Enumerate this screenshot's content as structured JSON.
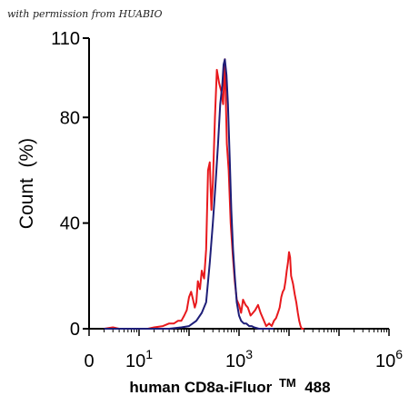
{
  "watermark": "with permission from HUABIO",
  "chart_data": {
    "type": "line",
    "xlabel": "human CD8a-iFluor™ 488",
    "xlabel_main": "human CD8a-iFluor",
    "xlabel_tm": "TM",
    "xlabel_tail": " 488",
    "ylabel": "Count  (%)",
    "x_scale": "log",
    "xlim": [
      1,
      1000000
    ],
    "ylim": [
      0,
      110
    ],
    "y_ticks": [
      0,
      40,
      80,
      110
    ],
    "x_ticks": [
      {
        "value": 1,
        "base": "0",
        "exp": ""
      },
      {
        "value": 10,
        "base": "10",
        "exp": "1"
      },
      {
        "value": 1000,
        "base": "10",
        "exp": "3"
      },
      {
        "value": 1000000,
        "base": "10",
        "exp": "6"
      }
    ],
    "grid": false,
    "series": [
      {
        "color": "#e8191d",
        "x": [
          2,
          3,
          4,
          6,
          10,
          15,
          20,
          30,
          40,
          50,
          60,
          70,
          80,
          90,
          100,
          110,
          120,
          130,
          140,
          150,
          165,
          180,
          200,
          220,
          240,
          260,
          280,
          300,
          330,
          360,
          400,
          440,
          480,
          520,
          570,
          620,
          680,
          750,
          820,
          900,
          1000,
          1100,
          1200,
          1350,
          1500,
          1700,
          1900,
          2100,
          2400,
          2700,
          3000,
          3500,
          4000,
          4500,
          5000,
          5500,
          6000,
          6500,
          7000,
          7500,
          8000,
          8500,
          9000,
          9500,
          10000,
          10500,
          11000,
          12000,
          13000,
          14000,
          15000,
          16000,
          17000,
          18000,
          20000
        ],
        "y": [
          0,
          0.5,
          0,
          0,
          0,
          0,
          0.5,
          1,
          2,
          2,
          3,
          3,
          5,
          7,
          12,
          14,
          11,
          8,
          10,
          18,
          15,
          22,
          19,
          30,
          60,
          63,
          45,
          55,
          80,
          98,
          93,
          90,
          85,
          102,
          70,
          60,
          40,
          28,
          18,
          11,
          9,
          6,
          11,
          9,
          8,
          5,
          6,
          7,
          9,
          6,
          4,
          1,
          2,
          1,
          3,
          4,
          6,
          8,
          12,
          14,
          15,
          18,
          22,
          25,
          29,
          27,
          20,
          17,
          13,
          10,
          6,
          3,
          1,
          0,
          0
        ]
      },
      {
        "color": "#1e1e78",
        "x": [
          2,
          10,
          40,
          70,
          100,
          140,
          180,
          220,
          260,
          300,
          340,
          380,
          420,
          460,
          490,
          520,
          560,
          600,
          650,
          700,
          760,
          820,
          900,
          1000,
          1100,
          1250,
          1400,
          1600,
          1800,
          2000,
          2500,
          3000,
          3500,
          4000,
          5000
        ],
        "y": [
          0,
          0,
          0,
          0.5,
          1,
          3,
          6,
          10,
          25,
          40,
          55,
          70,
          85,
          92,
          100,
          102,
          96,
          85,
          65,
          45,
          30,
          20,
          10,
          5,
          3,
          2,
          2,
          1,
          1,
          0.5,
          0,
          0,
          0,
          0,
          0
        ]
      }
    ]
  }
}
